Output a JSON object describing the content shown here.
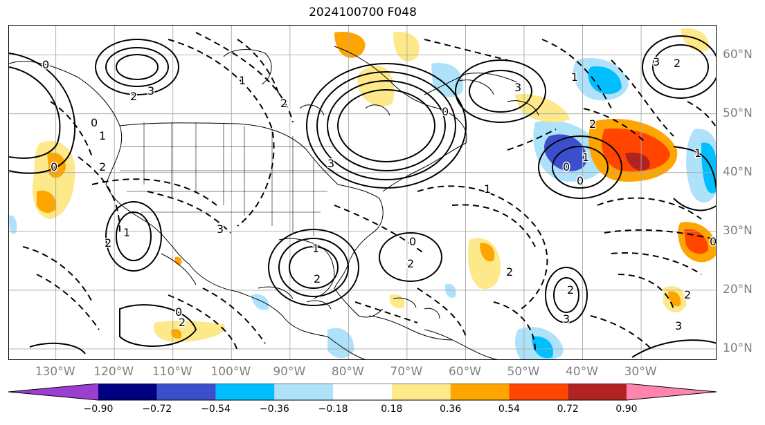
{
  "title": "2024100700 F048",
  "axes": {
    "lon_labels": [
      "130°W",
      "120°W",
      "110°W",
      "100°W",
      "90°W",
      "80°W",
      "70°W",
      "60°W",
      "50°W",
      "40°W",
      "30°W"
    ],
    "lat_labels": [
      "60°N",
      "50°N",
      "40°N",
      "30°N",
      "20°N",
      "10°N"
    ],
    "lon_range": [
      -138,
      -17
    ],
    "lat_range": [
      8,
      65
    ]
  },
  "colorbar": {
    "tick_labels": [
      "−0.90",
      "−0.72",
      "−0.54",
      "−0.36",
      "−0.18",
      "0.18",
      "0.36",
      "0.54",
      "0.72",
      "0.90"
    ],
    "colors": [
      "#9a3fd1",
      "#000080",
      "#3b4fcc",
      "#00bfff",
      "#aee2fa",
      "#ffffff",
      "#fde88a",
      "#ffa500",
      "#ff4500",
      "#b22222",
      "#ff85b0"
    ]
  },
  "contour_labels": [
    "0",
    "2",
    "3",
    "1",
    "0",
    "2",
    "1",
    "2",
    "3",
    "0",
    "1",
    "2",
    "0",
    "0",
    "2",
    "3",
    "1",
    "0",
    "2",
    "0",
    "3",
    "2",
    "1",
    "0",
    "2",
    "0",
    "3",
    "1",
    "2",
    "0",
    "3",
    "2",
    "1",
    "0",
    "2",
    "2",
    "3",
    "1",
    "0",
    "2"
  ]
}
